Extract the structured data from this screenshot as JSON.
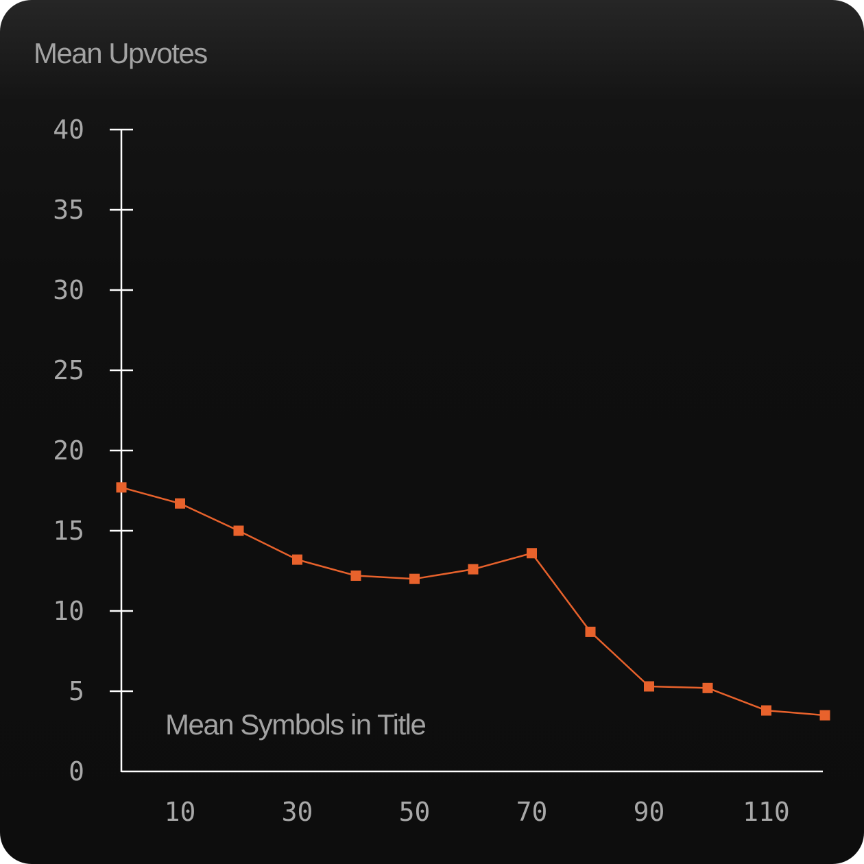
{
  "chart_data": {
    "type": "line",
    "title": "Mean Upvotes",
    "xlabel": "Mean Symbols in Title",
    "ylabel": "",
    "x": [
      0,
      10,
      20,
      30,
      40,
      50,
      60,
      70,
      80,
      90,
      100,
      110,
      120
    ],
    "series": [
      {
        "values": [
          17.7,
          16.7,
          15.0,
          13.2,
          12.2,
          12.0,
          12.6,
          13.6,
          8.7,
          5.3,
          5.2,
          3.8,
          3.5
        ]
      }
    ],
    "xlim": [
      0,
      120
    ],
    "ylim": [
      0,
      40
    ],
    "x_ticks": [
      10,
      30,
      50,
      70,
      90,
      110
    ],
    "y_ticks": [
      0,
      5,
      10,
      15,
      20,
      25,
      30,
      35,
      40
    ],
    "grid": false,
    "legend": "none",
    "colors": {
      "line": "#e8622c",
      "axis": "#ffffff",
      "text": "#a3a3a3"
    }
  }
}
